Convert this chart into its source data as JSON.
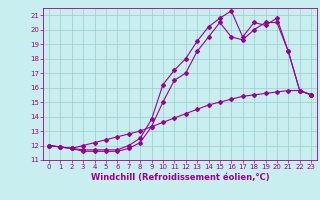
{
  "title": "",
  "xlabel": "Windchill (Refroidissement éolien,°C)",
  "ylabel": "",
  "bg_color": "#c8eef0",
  "line_color": "#990099",
  "grid_color": "#99cccc",
  "xlim": [
    -0.5,
    23.5
  ],
  "ylim": [
    11,
    21.5
  ],
  "xticks": [
    0,
    1,
    2,
    3,
    4,
    5,
    6,
    7,
    8,
    9,
    10,
    11,
    12,
    13,
    14,
    15,
    16,
    17,
    18,
    19,
    20,
    21,
    22,
    23
  ],
  "yticks": [
    11,
    12,
    13,
    14,
    15,
    16,
    17,
    18,
    19,
    20,
    21
  ],
  "line1_x": [
    0,
    1,
    2,
    3,
    4,
    5,
    6,
    7,
    8,
    9,
    10,
    11,
    12,
    13,
    14,
    15,
    16,
    17,
    18,
    19,
    20,
    21,
    22,
    23
  ],
  "line1_y": [
    12.0,
    11.9,
    11.8,
    11.6,
    11.6,
    11.6,
    11.6,
    11.8,
    12.2,
    13.3,
    15.0,
    16.5,
    17.0,
    18.5,
    19.5,
    20.5,
    19.5,
    19.3,
    20.0,
    20.5,
    20.5,
    18.5,
    15.8,
    15.5
  ],
  "line2_x": [
    0,
    1,
    2,
    3,
    4,
    5,
    6,
    7,
    8,
    9,
    10,
    11,
    12,
    13,
    14,
    15,
    16,
    17,
    18,
    19,
    20,
    21,
    22,
    23
  ],
  "line2_y": [
    12.0,
    11.9,
    11.8,
    11.7,
    11.7,
    11.7,
    11.7,
    12.0,
    12.5,
    13.8,
    16.2,
    17.2,
    18.0,
    19.2,
    20.2,
    20.8,
    21.3,
    19.5,
    20.5,
    20.3,
    20.8,
    18.5,
    15.8,
    15.5
  ],
  "line3_x": [
    0,
    1,
    2,
    3,
    4,
    5,
    6,
    7,
    8,
    9,
    10,
    11,
    12,
    13,
    14,
    15,
    16,
    17,
    18,
    19,
    20,
    21,
    22,
    23
  ],
  "line3_y": [
    12.0,
    11.9,
    11.8,
    12.0,
    12.2,
    12.4,
    12.6,
    12.8,
    13.0,
    13.3,
    13.6,
    13.9,
    14.2,
    14.5,
    14.8,
    15.0,
    15.2,
    15.4,
    15.5,
    15.6,
    15.7,
    15.8,
    15.8,
    15.5
  ],
  "marker": "D",
  "markersize": 2.0,
  "linewidth": 0.8,
  "tick_fontsize": 5.0,
  "xlabel_fontsize": 6.0
}
